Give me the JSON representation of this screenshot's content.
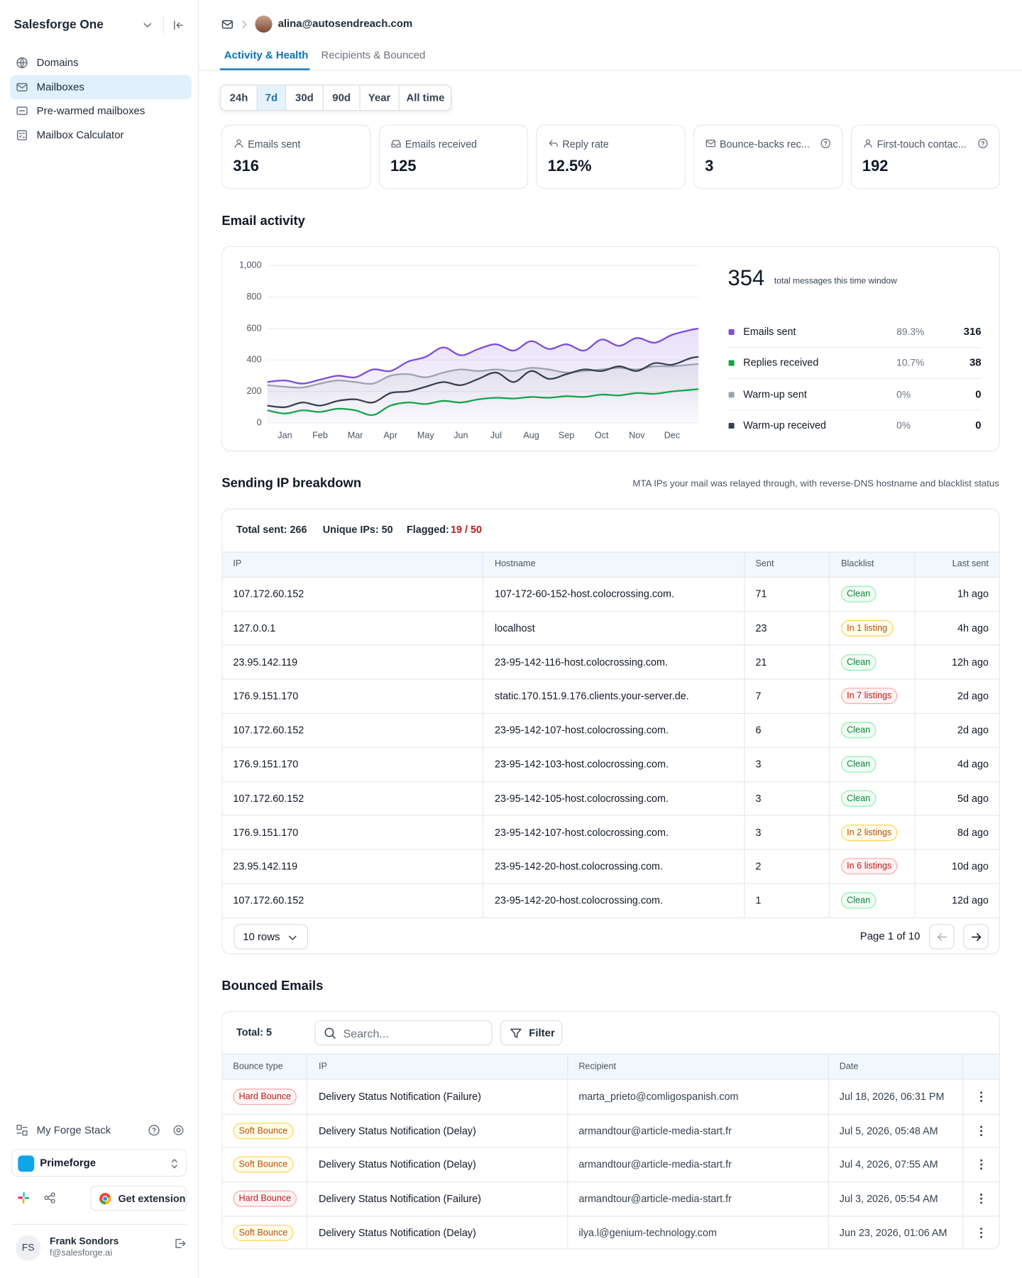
{
  "sidebar": {
    "brand": "Salesforge One",
    "nav": [
      "Domains",
      "Mailboxes",
      "Pre-warmed mailboxes",
      "Mailbox Calculator"
    ],
    "active": 1,
    "stack": "My Forge Stack",
    "workspace": "Primeforge",
    "extension": "Get extension",
    "user": {
      "initials": "FS",
      "name": "Frank Sondors",
      "email": "f@salesforge.ai"
    }
  },
  "header": {
    "email": "alina@autosendreach.com",
    "tabs": [
      "Activity & Health",
      "Recipients & Bounced"
    ],
    "active_tab": 0
  },
  "ranges": {
    "options": [
      "24h",
      "7d",
      "30d",
      "90d",
      "Year",
      "All time"
    ],
    "active": 1
  },
  "stats": [
    {
      "label": "Emails sent",
      "value": 316
    },
    {
      "label": "Emails received",
      "value": 125
    },
    {
      "label": "Reply rate",
      "value": "12.5%"
    },
    {
      "label": "Bounce-backs rec...",
      "value": 3
    },
    {
      "label": "First-touch contac...",
      "value": 192
    }
  ],
  "activity": {
    "title": "Email activity",
    "total": 354,
    "total_label": "total messages this time window"
  },
  "chart_data": {
    "type": "line",
    "x": [
      0.5,
      1,
      1.5,
      2,
      2.5,
      3,
      3.5,
      4,
      4.5,
      5,
      5.5,
      6,
      6.5,
      7,
      7.5,
      8,
      8.5,
      9,
      9.5,
      10,
      10.5,
      11,
      11.5,
      12,
      12.5,
      12.75
    ],
    "xlim": [
      0.5,
      12.75
    ],
    "xticks": [
      {
        "value": 1,
        "label": "Jan"
      },
      {
        "value": 2,
        "label": "Feb"
      },
      {
        "value": 3,
        "label": "Mar"
      },
      {
        "value": 4,
        "label": "Apr"
      },
      {
        "value": 5,
        "label": "May"
      },
      {
        "value": 6,
        "label": "Jun"
      },
      {
        "value": 7,
        "label": "Jul"
      },
      {
        "value": 8,
        "label": "Aug"
      },
      {
        "value": 9,
        "label": "Sep"
      },
      {
        "value": 10,
        "label": "Oct"
      },
      {
        "value": 11,
        "label": "Nov"
      },
      {
        "value": 12,
        "label": "Dec"
      }
    ],
    "ylim": [
      0,
      1000
    ],
    "yticks": [
      0,
      200,
      400,
      600,
      800,
      {
        "value": 1000,
        "label": "1,000"
      }
    ],
    "grid": true,
    "series": [
      {
        "name": "Emails sent",
        "color": "#7c4ddb",
        "share": "89.3%",
        "total": 316,
        "area": true,
        "values": [
          260,
          270,
          250,
          275,
          300,
          290,
          340,
          330,
          390,
          420,
          480,
          430,
          470,
          500,
          460,
          520,
          470,
          500,
          460,
          530,
          490,
          540,
          510,
          560,
          590,
          600
        ]
      },
      {
        "name": "Replies received",
        "color": "#16a34a",
        "share": "10.7%",
        "total": 38,
        "area": false,
        "values": [
          80,
          60,
          80,
          70,
          90,
          80,
          50,
          110,
          130,
          120,
          140,
          130,
          150,
          160,
          155,
          165,
          160,
          170,
          165,
          180,
          175,
          190,
          185,
          200,
          210,
          215
        ]
      },
      {
        "name": "Warm-up sent",
        "color": "#9ca3af",
        "share": "0%",
        "total": 0,
        "area": true,
        "values": [
          240,
          230,
          225,
          250,
          270,
          260,
          250,
          300,
          310,
          290,
          320,
          340,
          330,
          340,
          330,
          350,
          340,
          320,
          330,
          340,
          350,
          340,
          360,
          360,
          370,
          375
        ]
      },
      {
        "name": "Warm-up received",
        "color": "#374151",
        "share": "0%",
        "total": 0,
        "area": false,
        "values": [
          110,
          100,
          130,
          110,
          140,
          150,
          130,
          190,
          200,
          230,
          260,
          240,
          280,
          320,
          260,
          330,
          280,
          310,
          340,
          330,
          360,
          330,
          380,
          370,
          410,
          420
        ]
      }
    ]
  },
  "ip": {
    "title": "Sending IP breakdown",
    "note": "MTA IPs your mail was relayed through, with reverse-DNS hostname and blacklist status",
    "total": "Total sent: 266",
    "unique": "Unique IPs: 50",
    "flagged_label": "Flagged:",
    "flagged": "19 / 50",
    "columns": [
      "IP",
      "Hostname",
      "Sent",
      "Blacklist",
      "Last sent"
    ],
    "rows": [
      {
        "ip": "107.172.60.152",
        "host": "107-172-60-152-host.colocrossing.com.",
        "sent": 71,
        "blacklist": "Clean",
        "tone": "green",
        "last": "1h ago"
      },
      {
        "ip": "127.0.0.1",
        "host": "localhost",
        "sent": 23,
        "blacklist": "In 1 listing",
        "tone": "amber",
        "last": "4h ago"
      },
      {
        "ip": "23.95.142.119",
        "host": "23-95-142-116-host.colocrossing.com.",
        "sent": 21,
        "blacklist": "Clean",
        "tone": "green",
        "last": "12h ago"
      },
      {
        "ip": "176.9.151.170",
        "host": "static.170.151.9.176.clients.your-server.de.",
        "sent": 7,
        "blacklist": "In 7 listings",
        "tone": "red",
        "last": "2d ago"
      },
      {
        "ip": "107.172.60.152",
        "host": "23-95-142-107-host.colocrossing.com.",
        "sent": 6,
        "blacklist": "Clean",
        "tone": "green",
        "last": "2d ago"
      },
      {
        "ip": "176.9.151.170",
        "host": "23-95-142-103-host.colocrossing.com.",
        "sent": 3,
        "blacklist": "Clean",
        "tone": "green",
        "last": "4d ago"
      },
      {
        "ip": "107.172.60.152",
        "host": "23-95-142-105-host.colocrossing.com.",
        "sent": 3,
        "blacklist": "Clean",
        "tone": "green",
        "last": "5d ago"
      },
      {
        "ip": "176.9.151.170",
        "host": "23-95-142-107-host.colocrossing.com.",
        "sent": 3,
        "blacklist": "In 2 listings",
        "tone": "amber",
        "last": "8d ago"
      },
      {
        "ip": "23.95.142.119",
        "host": "23-95-142-20-host.colocrossing.com.",
        "sent": 2,
        "blacklist": "In 6 listings",
        "tone": "red",
        "last": "10d ago"
      },
      {
        "ip": "107.172.60.152",
        "host": "23-95-142-20-host.colocrossing.com.",
        "sent": 1,
        "blacklist": "Clean",
        "tone": "green",
        "last": "12d ago"
      }
    ],
    "rows_select": "10 rows",
    "page": "Page 1 of 10"
  },
  "bounced": {
    "title": "Bounced Emails",
    "total": "Total: 5",
    "search": "Search...",
    "filter": "Filter",
    "columns": [
      "Bounce type",
      "IP",
      "Recipient",
      "Date"
    ],
    "rows": [
      {
        "type": "Hard Bounce",
        "tone": "red",
        "ip": "Delivery Status Notification (Failure)",
        "recipient": "marta_prieto@comligospanish.com",
        "date": "Jul 18, 2026, 06:31 PM"
      },
      {
        "type": "Soft Bounce",
        "tone": "amber",
        "ip": "Delivery Status Notification (Delay)",
        "recipient": "armandtour@article-media-start.fr",
        "date": "Jul 5, 2026, 05:48 AM"
      },
      {
        "type": "Soft Bounce",
        "tone": "amber",
        "ip": "Delivery Status Notification (Delay)",
        "recipient": "armandtour@article-media-start.fr",
        "date": "Jul 4, 2026, 07:55 AM"
      },
      {
        "type": "Hard Bounce",
        "tone": "red",
        "ip": "Delivery Status Notification (Failure)",
        "recipient": "armandtour@article-media-start.fr",
        "date": "Jul 3, 2026, 05:54 AM"
      },
      {
        "type": "Soft Bounce",
        "tone": "amber",
        "ip": "Delivery Status Notification (Delay)",
        "recipient": "ilya.l@genium-technology.com",
        "date": "Jun 23, 2026, 01:06 AM"
      }
    ]
  }
}
